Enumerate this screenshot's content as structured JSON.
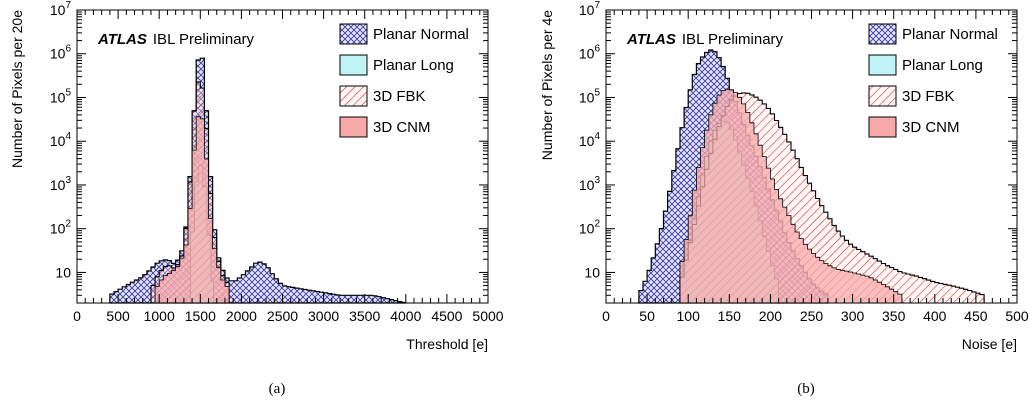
{
  "chart_data": [
    {
      "type": "histogram",
      "caption": "(a)",
      "atlas_label": "ATLAS",
      "tag_label": "IBL Preliminary",
      "xlabel": "Threshold [e]",
      "ylabel": "Number of Pixels per 20e",
      "xlim": [
        0,
        5000
      ],
      "ylim": [
        2,
        10000000
      ],
      "yscale": "log",
      "grid": false,
      "legend_position": "top-right",
      "x_ticks": [
        "0",
        "500",
        "1000",
        "1500",
        "2000",
        "2500",
        "3000",
        "3500",
        "4000",
        "4500",
        "5000"
      ],
      "y_ticks": [
        {
          "value": 10,
          "label": "10",
          "exp": ""
        },
        {
          "value": 100,
          "label": "10",
          "exp": "2"
        },
        {
          "value": 1000,
          "label": "10",
          "exp": "3"
        },
        {
          "value": 10000,
          "label": "10",
          "exp": "4"
        },
        {
          "value": 100000,
          "label": "10",
          "exp": "5"
        },
        {
          "value": 1000000,
          "label": "10",
          "exp": "6"
        },
        {
          "value": 10000000,
          "label": "10",
          "exp": "7"
        }
      ],
      "series": [
        {
          "name": "Planar Normal",
          "style": "blue-crosshatch",
          "x": [
            400,
            600,
            800,
            900,
            1000,
            1100,
            1200,
            1300,
            1350,
            1400,
            1440,
            1480,
            1500,
            1520,
            1560,
            1600,
            1650,
            1700,
            1800,
            1900,
            2000,
            2100,
            2200,
            2300,
            2400,
            2500,
            2800,
            3200,
            3600,
            4000
          ],
          "y": [
            3,
            5,
            8,
            12,
            18,
            20,
            15,
            40,
            300,
            8000,
            150000,
            900000,
            1400000,
            1000000,
            150000,
            8000,
            300,
            30,
            8,
            6,
            8,
            12,
            18,
            15,
            8,
            5,
            4,
            3,
            3,
            2
          ]
        },
        {
          "name": "Planar Long",
          "style": "cyan-fill",
          "x": [
            1380,
            1420,
            1460,
            1500,
            1540,
            1580,
            1620,
            1660
          ],
          "y": [
            20,
            200,
            1500,
            3000,
            1800,
            300,
            30,
            5
          ]
        },
        {
          "name": "3D FBK",
          "style": "red-hatch",
          "x": [
            900,
            1000,
            1100,
            1200,
            1300,
            1380,
            1420,
            1460,
            1500,
            1540,
            1580,
            1620,
            1680,
            1750,
            1850
          ],
          "y": [
            4,
            10,
            15,
            12,
            30,
            1500,
            40000,
            200000,
            280000,
            120000,
            15000,
            800,
            50,
            10,
            5
          ]
        },
        {
          "name": "3D CNM",
          "style": "pink-fill",
          "x": [
            950,
            1050,
            1150,
            1250,
            1350,
            1420,
            1460,
            1500,
            1540,
            1580,
            1620,
            1680,
            1750,
            1850
          ],
          "y": [
            4,
            8,
            10,
            15,
            60,
            5000,
            30000,
            50000,
            25000,
            3000,
            200,
            30,
            8,
            4
          ]
        }
      ]
    },
    {
      "type": "histogram",
      "caption": "(b)",
      "atlas_label": "ATLAS",
      "tag_label": "IBL Preliminary",
      "xlabel": "Noise [e]",
      "ylabel": "Number of Pixels per 4e",
      "xlim": [
        0,
        500
      ],
      "ylim": [
        2,
        10000000
      ],
      "yscale": "log",
      "grid": false,
      "legend_position": "top-right",
      "x_ticks": [
        "0",
        "50",
        "100",
        "150",
        "200",
        "250",
        "300",
        "350",
        "400",
        "450",
        "500"
      ],
      "y_ticks": [
        {
          "value": 10,
          "label": "10",
          "exp": ""
        },
        {
          "value": 100,
          "label": "10",
          "exp": "2"
        },
        {
          "value": 1000,
          "label": "10",
          "exp": "3"
        },
        {
          "value": 10000,
          "label": "10",
          "exp": "4"
        },
        {
          "value": 100000,
          "label": "10",
          "exp": "5"
        },
        {
          "value": 1000000,
          "label": "10",
          "exp": "6"
        },
        {
          "value": 10000000,
          "label": "10",
          "exp": "7"
        }
      ],
      "series": [
        {
          "name": "Planar Normal",
          "style": "blue-crosshatch",
          "x": [
            40,
            50,
            60,
            70,
            80,
            90,
            100,
            110,
            120,
            130,
            140,
            150,
            160,
            170,
            180,
            190,
            200,
            210,
            220,
            230,
            240,
            250,
            260,
            270
          ],
          "y": [
            3,
            8,
            30,
            150,
            1200,
            12000,
            100000,
            500000,
            1000000,
            1300000,
            700000,
            200000,
            60000,
            18000,
            6000,
            2000,
            600,
            200,
            60,
            25,
            12,
            6,
            4,
            3
          ]
        },
        {
          "name": "Planar Long",
          "style": "cyan-fill",
          "x": [
            90,
            100,
            110,
            120,
            130,
            140,
            150,
            160,
            170,
            180,
            190,
            200,
            210
          ],
          "y": [
            5,
            30,
            300,
            3000,
            15000,
            30000,
            25000,
            8000,
            2000,
            500,
            100,
            20,
            5
          ]
        },
        {
          "name": "3D FBK",
          "style": "red-hatch",
          "x": [
            90,
            100,
            110,
            120,
            130,
            140,
            150,
            160,
            170,
            180,
            190,
            200,
            210,
            220,
            230,
            240,
            250,
            260,
            270,
            280,
            290,
            300,
            320,
            340,
            360,
            380,
            400,
            420,
            440,
            460
          ],
          "y": [
            5,
            30,
            200,
            1500,
            8000,
            30000,
            80000,
            120000,
            130000,
            110000,
            80000,
            50000,
            25000,
            12000,
            5000,
            2000,
            900,
            400,
            200,
            100,
            60,
            40,
            25,
            15,
            10,
            8,
            6,
            5,
            4,
            3
          ]
        },
        {
          "name": "3D CNM",
          "style": "pink-fill",
          "x": [
            90,
            100,
            110,
            120,
            130,
            140,
            150,
            160,
            170,
            180,
            190,
            200,
            210,
            220,
            230,
            240,
            250,
            260,
            270,
            280,
            300,
            320,
            340,
            360
          ],
          "y": [
            10,
            100,
            1500,
            12000,
            60000,
            140000,
            160000,
            120000,
            60000,
            20000,
            6000,
            1800,
            600,
            250,
            100,
            50,
            30,
            20,
            15,
            12,
            10,
            8,
            5,
            3
          ]
        }
      ]
    }
  ]
}
